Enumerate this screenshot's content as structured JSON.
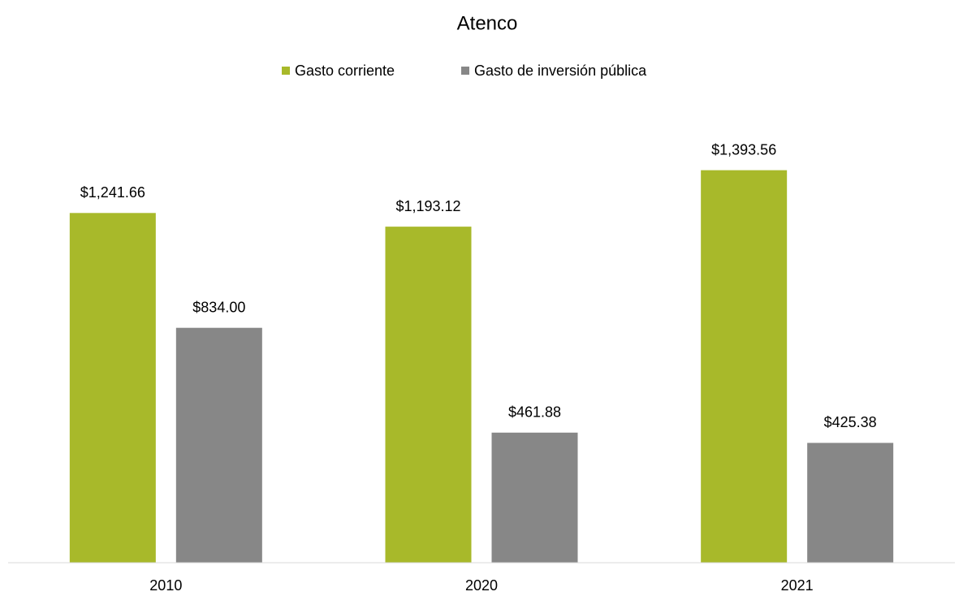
{
  "chart_data": {
    "type": "bar",
    "title": "Atenco",
    "categories": [
      "2010",
      "2020",
      "2021"
    ],
    "series": [
      {
        "name": "Gasto corriente",
        "color": "#a8b92a",
        "values": [
          1241.66,
          1193.12,
          1393.56
        ],
        "value_labels": [
          "$1,241.66",
          "$1,193.12",
          "$1,393.56"
        ]
      },
      {
        "name": "Gasto de inversión pública",
        "color": "#878787",
        "values": [
          834.0,
          461.88,
          425.38
        ],
        "value_labels": [
          "$834.00",
          "$461.88",
          "$425.38"
        ]
      }
    ],
    "ylim": [
      0,
      1600
    ],
    "legend": "top"
  }
}
